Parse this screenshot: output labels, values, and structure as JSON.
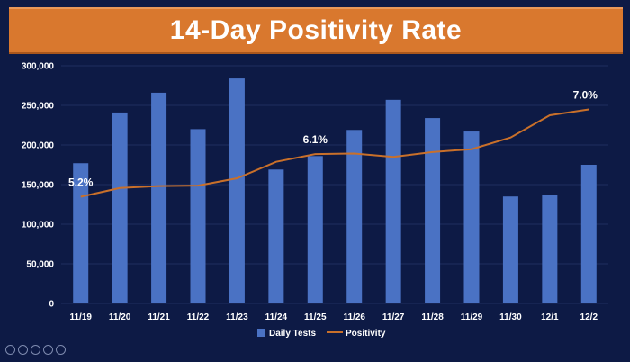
{
  "title": "14-Day Positivity Rate",
  "colors": {
    "background": "#0d1a45",
    "title_bar": "#d9782e",
    "bars": "#4a72c4",
    "line": "#c9702a",
    "gridline": "#1f2d5e"
  },
  "chart_data": {
    "type": "bar",
    "title": "14-Day Positivity Rate",
    "categories": [
      "11/19",
      "11/20",
      "11/21",
      "11/22",
      "11/23",
      "11/24",
      "11/25",
      "11/26",
      "11/27",
      "11/28",
      "11/29",
      "11/30",
      "12/1",
      "12/2"
    ],
    "series": [
      {
        "name": "Daily Tests",
        "type": "bar",
        "axis": "left",
        "values": [
          177000,
          241000,
          266000,
          220000,
          284000,
          169000,
          186000,
          219000,
          257000,
          234000,
          217000,
          135000,
          137000,
          175000
        ]
      },
      {
        "name": "Positivity",
        "type": "line",
        "axis": "hidden-secondary",
        "values": [
          5.2,
          5.38,
          5.42,
          5.43,
          5.58,
          5.92,
          6.08,
          6.09,
          6.02,
          6.12,
          6.18,
          6.42,
          6.88,
          7.0
        ]
      }
    ],
    "ylim": [
      0,
      300000
    ],
    "yticks": [
      "0",
      "50,000",
      "100,000",
      "150,000",
      "200,000",
      "250,000",
      "300,000"
    ],
    "data_labels": [
      {
        "series": "Positivity",
        "index": 0,
        "text": "5.2%"
      },
      {
        "series": "Positivity",
        "index": 6,
        "text": "6.1%"
      },
      {
        "series": "Positivity",
        "index": 13,
        "text": "7.0%"
      }
    ],
    "legend": {
      "position": "bottom",
      "items": [
        "Daily Tests",
        "Positivity"
      ]
    },
    "grid": true
  }
}
